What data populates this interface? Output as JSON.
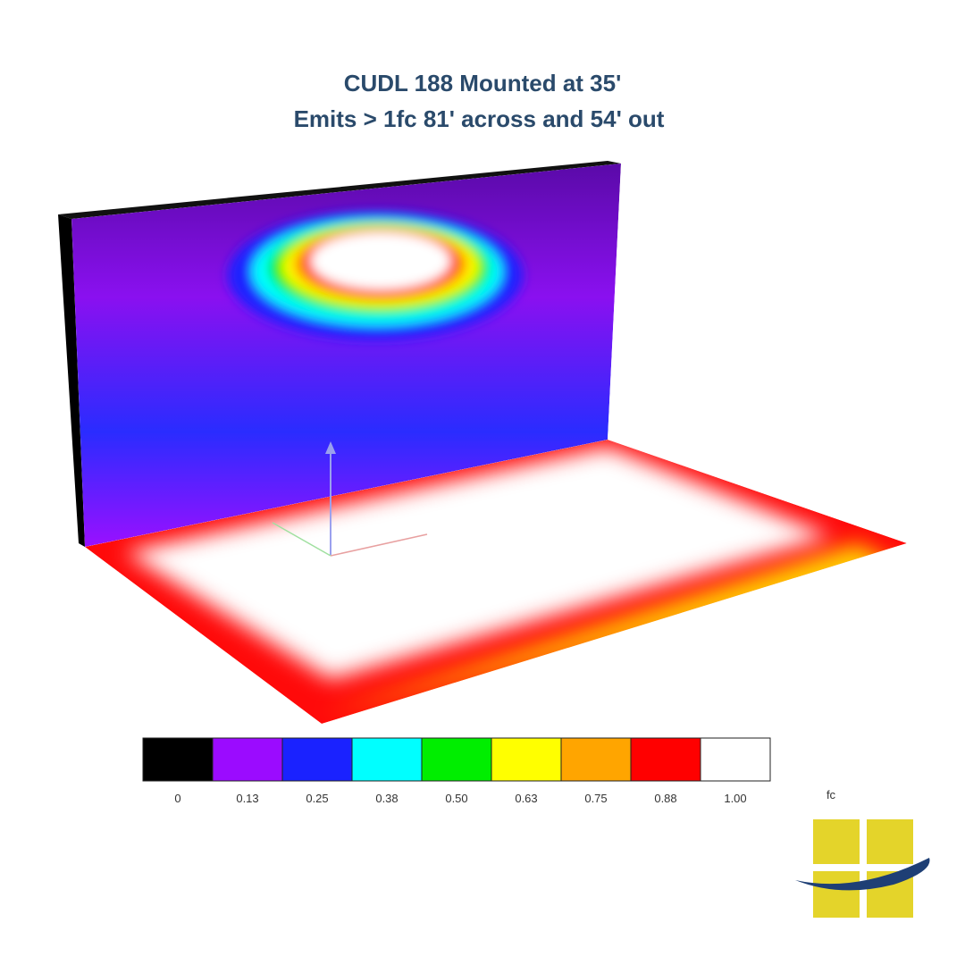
{
  "header": {
    "title_line1": "CUDL 188 Mounted at 35'",
    "title_line2": "Emits > 1fc 81' across and 54' out"
  },
  "legend": {
    "unit": "fc",
    "items": [
      {
        "label": "0",
        "color": "#000000"
      },
      {
        "label": "0.13",
        "color": "#9b0bff"
      },
      {
        "label": "0.25",
        "color": "#1a22ff"
      },
      {
        "label": "0.38",
        "color": "#00ffff"
      },
      {
        "label": "0.50",
        "color": "#00ee00"
      },
      {
        "label": "0.63",
        "color": "#ffff00"
      },
      {
        "label": "0.75",
        "color": "#ffa500"
      },
      {
        "label": "0.88",
        "color": "#ff0000"
      },
      {
        "label": "1.00",
        "color": "#ffffff"
      }
    ]
  }
}
